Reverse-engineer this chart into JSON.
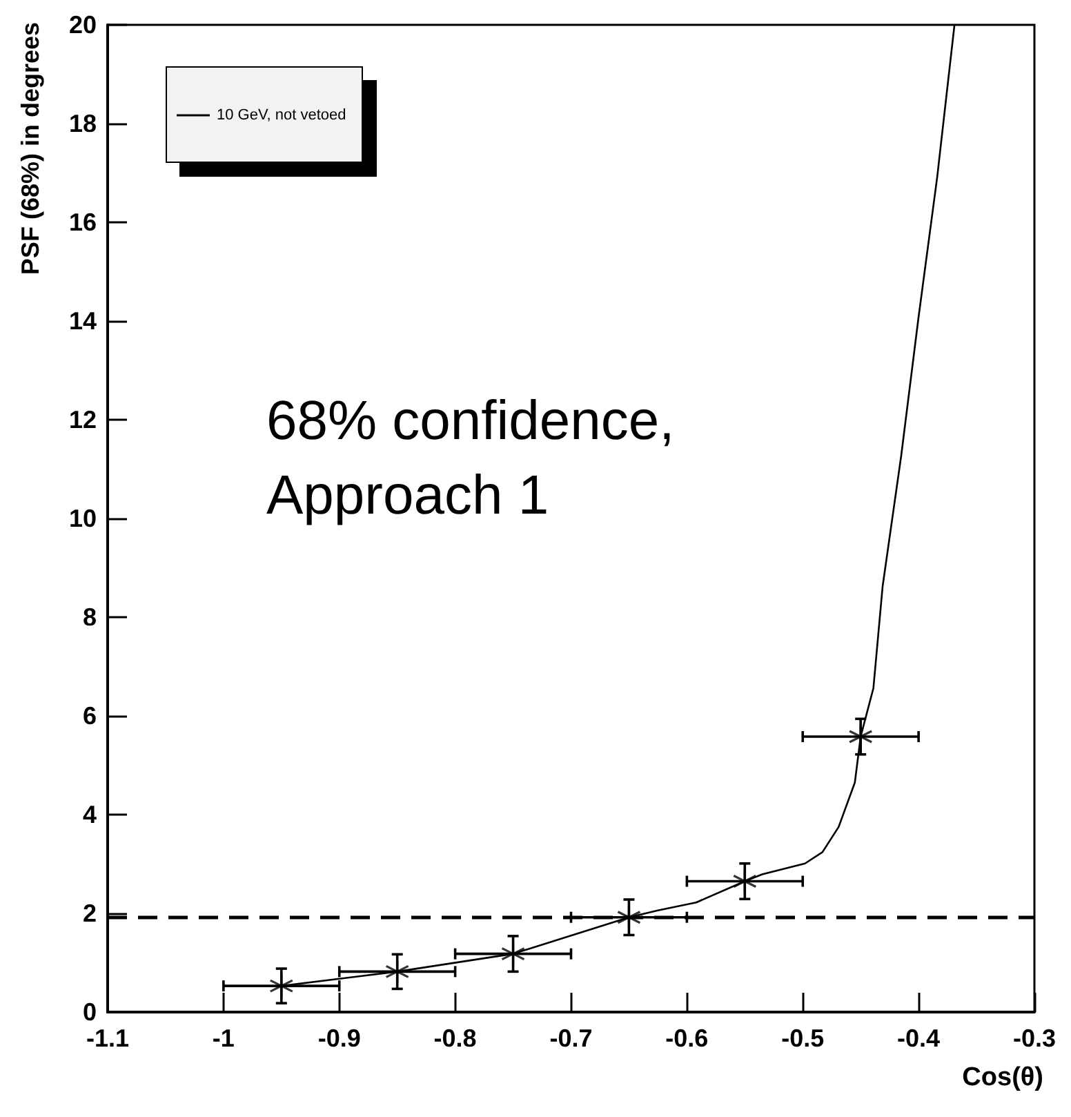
{
  "chart_data": {
    "type": "scatter",
    "ylabel": "PSF (68%) in degrees",
    "xlabel": "Cos(θ)",
    "annotations": [
      "68% confidence,\nApproach 1"
    ],
    "xlim": [
      -1.1,
      -0.3
    ],
    "xticks": [
      -1.1,
      -1,
      -0.9,
      -0.8,
      -0.7,
      -0.6,
      -0.5,
      -0.4,
      -0.3
    ],
    "ylim": [
      0,
      20
    ],
    "yticks": [
      0,
      2,
      4,
      6,
      8,
      10,
      12,
      14,
      16,
      18,
      20
    ],
    "grid": false,
    "legend": "top left",
    "ref_lines": [
      {
        "axis": "y",
        "value": 1.92,
        "label": null,
        "color": "#000000",
        "line_style": "dashed"
      }
    ],
    "series": [
      {
        "color": "#000000",
        "marker": "cross",
        "x": [
          -0.95,
          -0.85,
          -0.75,
          -0.65,
          -0.55,
          -0.45
        ],
        "values": [
          0.53,
          0.82,
          1.18,
          1.92,
          2.65,
          5.58
        ],
        "errors": [
          0.35,
          0.35,
          0.36,
          0.36,
          0.36,
          0.36
        ],
        "xerrors": [
          0.05,
          0.05,
          0.05,
          0.05,
          0.05,
          0.05
        ]
      },
      {
        "type": "line",
        "name": "10 GeV, not vetoed",
        "color": "#000000",
        "marker": "none",
        "line_style": "solid",
        "x": [
          -0.95,
          -0.85,
          -0.75,
          -0.65,
          -0.625,
          -0.592,
          -0.55,
          -0.535,
          -0.498,
          -0.483,
          -0.469,
          -0.455,
          -0.45,
          -0.439,
          -0.431,
          -0.415,
          -0.4,
          -0.384,
          -0.369
        ],
        "values": [
          0.53,
          0.82,
          1.18,
          1.92,
          2.06,
          2.22,
          2.65,
          2.79,
          3.01,
          3.24,
          3.75,
          4.65,
          5.58,
          6.56,
          8.63,
          11.27,
          14.08,
          16.9,
          20
        ]
      }
    ]
  }
}
